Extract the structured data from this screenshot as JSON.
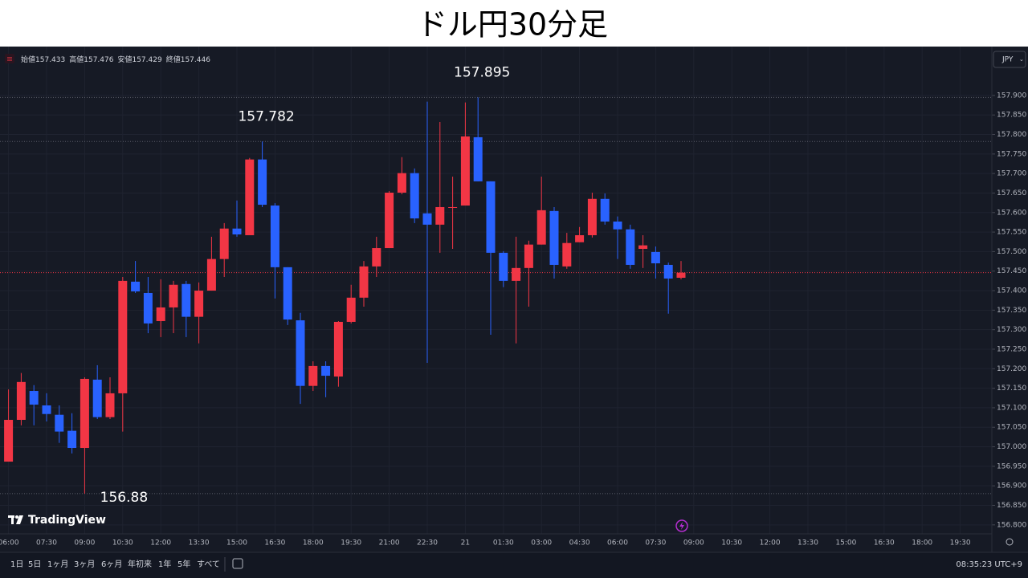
{
  "title": "ドル円30分足",
  "ohlc_legend": [
    {
      "label": "始値",
      "value": "157.433"
    },
    {
      "label": "高値",
      "value": "157.476"
    },
    {
      "label": "安値",
      "value": "157.429"
    },
    {
      "label": "終値",
      "value": "157.446"
    }
  ],
  "currency": "JPY",
  "brand": "TradingView",
  "ranges": [
    "1日",
    "5日",
    "1ヶ月",
    "3ヶ月",
    "6ヶ月",
    "年初来",
    "1年",
    "5年",
    "すべて"
  ],
  "clock": "08:35:23 UTC+9",
  "chart_data": {
    "type": "candlestick",
    "categories": [
      "06:00",
      null,
      null,
      "07:30",
      null,
      null,
      "09:00",
      null,
      null,
      "10:30",
      null,
      null,
      "12:00",
      null,
      null,
      "13:30",
      null,
      null,
      "15:00",
      null,
      null,
      "16:30",
      null,
      null,
      "18:00",
      null,
      null,
      "19:30",
      null,
      null,
      "21:00",
      null,
      null,
      "22:30",
      null,
      null,
      "21",
      null,
      null,
      "01:30",
      null,
      null,
      "03:00",
      null,
      null,
      "04:30",
      null,
      null,
      "06:00",
      null,
      null,
      "07:30",
      null,
      null,
      "09:00",
      null,
      null,
      "10:30",
      null,
      null,
      "12:00",
      null,
      null,
      "13:30",
      null,
      null,
      "15:00",
      null,
      null,
      "16:30",
      null,
      null,
      "18:00",
      null,
      null,
      "19:30",
      null,
      null
    ],
    "open": [
      156.962,
      157.069,
      157.143,
      157.106,
      157.082,
      157.041,
      156.997,
      157.172,
      157.076,
      157.137,
      157.423,
      157.394,
      157.322,
      157.357,
      157.417,
      157.333,
      157.4,
      157.481,
      157.559,
      157.542,
      157.736,
      157.618,
      157.46,
      157.324,
      157.156,
      157.207,
      157.18,
      157.32,
      157.382,
      157.462,
      157.509,
      157.651,
      157.701,
      157.598,
      157.569,
      157.614,
      157.618,
      157.793,
      157.68,
      157.497,
      157.425,
      157.458,
      157.518,
      157.604,
      157.462,
      157.524,
      157.542,
      157.635,
      157.577,
      157.557,
      157.507,
      157.499,
      157.466,
      157.433,
      null,
      null,
      null,
      null,
      null,
      null,
      null,
      null,
      null,
      null,
      null,
      null,
      null,
      null,
      null,
      null,
      null,
      null,
      null,
      null,
      null,
      null,
      null,
      null
    ],
    "high": [
      157.147,
      157.189,
      157.158,
      157.137,
      157.106,
      157.086,
      157.178,
      157.209,
      157.178,
      157.435,
      157.476,
      157.435,
      157.429,
      157.425,
      157.425,
      157.421,
      157.538,
      157.573,
      157.631,
      157.74,
      157.782,
      157.624,
      157.46,
      157.343,
      157.219,
      157.219,
      157.322,
      157.415,
      157.476,
      157.538,
      157.655,
      157.742,
      157.713,
      157.884,
      157.832,
      157.692,
      157.882,
      157.895,
      157.68,
      157.501,
      157.538,
      157.528,
      157.692,
      157.614,
      157.548,
      157.563,
      157.651,
      157.649,
      157.59,
      157.569,
      157.542,
      157.513,
      157.472,
      157.476,
      null,
      null,
      null,
      null,
      null,
      null,
      null,
      null,
      null,
      null,
      null,
      null,
      null,
      null,
      null,
      null,
      null,
      null,
      null,
      null,
      null,
      null,
      null,
      null
    ],
    "low": [
      156.962,
      157.055,
      157.055,
      157.065,
      157.01,
      156.983,
      156.88,
      157.071,
      157.071,
      157.039,
      157.394,
      157.291,
      157.281,
      157.291,
      157.281,
      157.265,
      157.4,
      157.435,
      157.538,
      157.542,
      157.614,
      157.38,
      157.312,
      157.11,
      157.143,
      157.127,
      157.154,
      157.316,
      157.359,
      157.435,
      157.509,
      157.647,
      157.573,
      157.215,
      157.497,
      157.507,
      157.618,
      157.68,
      157.287,
      157.409,
      157.265,
      157.359,
      157.518,
      157.431,
      157.456,
      157.524,
      157.536,
      157.569,
      157.481,
      157.456,
      157.458,
      157.431,
      157.341,
      157.429,
      null,
      null,
      null,
      null,
      null,
      null,
      null,
      null,
      null,
      null,
      null,
      null,
      null,
      null,
      null,
      null,
      null,
      null,
      null,
      null,
      null,
      null,
      null,
      null
    ],
    "close": [
      157.069,
      157.166,
      157.108,
      157.084,
      157.039,
      156.997,
      157.174,
      157.076,
      157.137,
      157.425,
      157.398,
      157.316,
      157.357,
      157.415,
      157.333,
      157.4,
      157.481,
      157.559,
      157.544,
      157.736,
      157.62,
      157.46,
      157.326,
      157.156,
      157.207,
      157.182,
      157.32,
      157.382,
      157.462,
      157.509,
      157.651,
      157.701,
      157.585,
      157.569,
      157.614,
      157.614,
      157.795,
      157.68,
      157.497,
      157.425,
      157.458,
      157.518,
      157.606,
      157.466,
      157.522,
      157.542,
      157.635,
      157.577,
      157.557,
      157.466,
      157.516,
      157.47,
      157.431,
      157.446,
      null,
      null,
      null,
      null,
      null,
      null,
      null,
      null,
      null,
      null,
      null,
      null,
      null,
      null,
      null,
      null,
      null,
      null,
      null,
      null,
      null,
      null,
      null,
      null
    ],
    "up_color": "#f23645",
    "down_color": "#2962ff",
    "annotations": [
      157.895,
      157.782,
      156.88
    ],
    "ylim": [
      156.777,
      158.017
    ],
    "yticks": [
      {
        "value": 156.8,
        "label": "156.800"
      },
      {
        "value": 156.85,
        "label": "156.850"
      },
      {
        "value": 156.9,
        "label": "156.900"
      },
      {
        "value": 156.95,
        "label": "156.950"
      },
      {
        "value": 157.0,
        "label": "157.000"
      },
      {
        "value": 157.05,
        "label": "157.050"
      },
      {
        "value": 157.1,
        "label": "157.100"
      },
      {
        "value": 157.15,
        "label": "157.150"
      },
      {
        "value": 157.2,
        "label": "157.200"
      },
      {
        "value": 157.25,
        "label": "157.250"
      },
      {
        "value": 157.3,
        "label": "157.300"
      },
      {
        "value": 157.35,
        "label": "157.350"
      },
      {
        "value": 157.4,
        "label": "157.400"
      },
      {
        "value": 157.45,
        "label": "157.450"
      },
      {
        "value": 157.5,
        "label": "157.500"
      },
      {
        "value": 157.55,
        "label": "157.550"
      },
      {
        "value": 157.6,
        "label": "157.600"
      },
      {
        "value": 157.65,
        "label": "157.650"
      },
      {
        "value": 157.7,
        "label": "157.700"
      },
      {
        "value": 157.75,
        "label": "157.750"
      },
      {
        "value": 157.8,
        "label": "157.800"
      },
      {
        "value": 157.85,
        "label": "157.850"
      },
      {
        "value": 157.9,
        "label": "157.900"
      }
    ],
    "grid": true
  }
}
